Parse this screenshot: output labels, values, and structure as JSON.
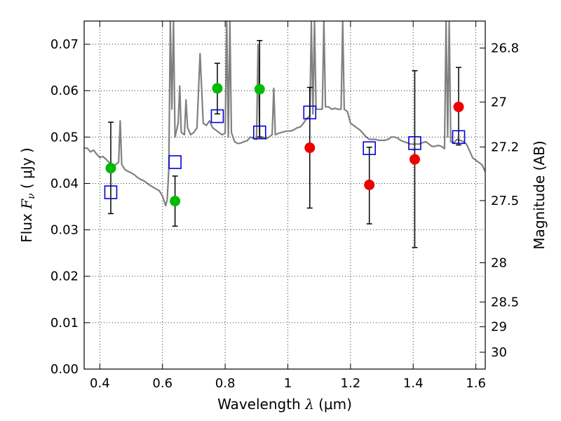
{
  "chart_data": {
    "type": "scatter",
    "title": "",
    "xlabel": {
      "text": "Wavelength",
      "symbol": "λ",
      "unit": "(μm)"
    },
    "ylabel": {
      "text": "Flux",
      "symbol": "F",
      "subscript": "ν",
      "unit": "( μJy )"
    },
    "y2label": "Magnitude (AB)",
    "xlim": [
      0.35,
      1.63
    ],
    "ylim": [
      0.0,
      0.075
    ],
    "grid": true,
    "x_ticks": [
      {
        "value": 0.4,
        "label": "0.4"
      },
      {
        "value": 0.6,
        "label": "0.6"
      },
      {
        "value": 0.8,
        "label": "0.8"
      },
      {
        "value": 1.0,
        "label": "1"
      },
      {
        "value": 1.2,
        "label": "1.2"
      },
      {
        "value": 1.4,
        "label": "1.4"
      },
      {
        "value": 1.6,
        "label": "1.6"
      }
    ],
    "y_ticks": [
      {
        "value": 0.0,
        "label": "0.00"
      },
      {
        "value": 0.01,
        "label": "0.01"
      },
      {
        "value": 0.02,
        "label": "0.02"
      },
      {
        "value": 0.03,
        "label": "0.03"
      },
      {
        "value": 0.04,
        "label": "0.04"
      },
      {
        "value": 0.05,
        "label": "0.05"
      },
      {
        "value": 0.06,
        "label": "0.06"
      },
      {
        "value": 0.07,
        "label": "0.07"
      }
    ],
    "y2_ticks": [
      {
        "value": 26.8,
        "label": "26.8"
      },
      {
        "value": 27.0,
        "label": "27"
      },
      {
        "value": 27.2,
        "label": "27.2"
      },
      {
        "value": 27.5,
        "label": "27.5"
      },
      {
        "value": 28.0,
        "label": "28"
      },
      {
        "value": 28.5,
        "label": "28.5"
      },
      {
        "value": 29.0,
        "label": "29"
      },
      {
        "value": 30.0,
        "label": "30"
      }
    ],
    "model_spectrum": {
      "color": "#808080",
      "points": [
        [
          0.35,
          0.0476
        ],
        [
          0.36,
          0.0476
        ],
        [
          0.37,
          0.0468
        ],
        [
          0.38,
          0.0472
        ],
        [
          0.39,
          0.0463
        ],
        [
          0.4,
          0.0456
        ],
        [
          0.41,
          0.0458
        ],
        [
          0.42,
          0.0452
        ],
        [
          0.43,
          0.0445
        ],
        [
          0.44,
          0.044
        ],
        [
          0.45,
          0.044
        ],
        [
          0.46,
          0.0446
        ],
        [
          0.465,
          0.0535
        ],
        [
          0.47,
          0.0441
        ],
        [
          0.48,
          0.043
        ],
        [
          0.49,
          0.0426
        ],
        [
          0.5,
          0.0423
        ],
        [
          0.51,
          0.0419
        ],
        [
          0.52,
          0.0413
        ],
        [
          0.53,
          0.0409
        ],
        [
          0.54,
          0.0406
        ],
        [
          0.55,
          0.0401
        ],
        [
          0.56,
          0.0396
        ],
        [
          0.57,
          0.0392
        ],
        [
          0.58,
          0.0388
        ],
        [
          0.59,
          0.0384
        ],
        [
          0.6,
          0.0373
        ],
        [
          0.61,
          0.0352
        ],
        [
          0.615,
          0.0365
        ],
        [
          0.62,
          0.043
        ],
        [
          0.625,
          0.075
        ],
        [
          0.63,
          0.056
        ],
        [
          0.635,
          0.075
        ],
        [
          0.64,
          0.05
        ],
        [
          0.65,
          0.053
        ],
        [
          0.655,
          0.061
        ],
        [
          0.66,
          0.051
        ],
        [
          0.67,
          0.0505
        ],
        [
          0.675,
          0.058
        ],
        [
          0.68,
          0.052
        ],
        [
          0.69,
          0.0505
        ],
        [
          0.7,
          0.051
        ],
        [
          0.71,
          0.052
        ],
        [
          0.72,
          0.068
        ],
        [
          0.73,
          0.053
        ],
        [
          0.74,
          0.0525
        ],
        [
          0.75,
          0.0535
        ],
        [
          0.76,
          0.052
        ],
        [
          0.77,
          0.0515
        ],
        [
          0.78,
          0.051
        ],
        [
          0.79,
          0.0505
        ],
        [
          0.8,
          0.0508
        ],
        [
          0.805,
          0.075
        ],
        [
          0.81,
          0.05
        ],
        [
          0.815,
          0.075
        ],
        [
          0.82,
          0.051
        ],
        [
          0.83,
          0.049
        ],
        [
          0.84,
          0.0486
        ],
        [
          0.85,
          0.0487
        ],
        [
          0.86,
          0.049
        ],
        [
          0.87,
          0.0492
        ],
        [
          0.88,
          0.05
        ],
        [
          0.89,
          0.0497
        ],
        [
          0.9,
          0.0495
        ],
        [
          0.905,
          0.07
        ],
        [
          0.91,
          0.0498
        ],
        [
          0.92,
          0.05
        ],
        [
          0.93,
          0.0496
        ],
        [
          0.94,
          0.05
        ],
        [
          0.95,
          0.0505
        ],
        [
          0.955,
          0.0605
        ],
        [
          0.96,
          0.0505
        ],
        [
          0.97,
          0.0508
        ],
        [
          0.98,
          0.051
        ],
        [
          0.99,
          0.0512
        ],
        [
          1.0,
          0.0513
        ],
        [
          1.01,
          0.0513
        ],
        [
          1.02,
          0.0516
        ],
        [
          1.03,
          0.052
        ],
        [
          1.04,
          0.0522
        ],
        [
          1.05,
          0.053
        ],
        [
          1.06,
          0.054
        ],
        [
          1.07,
          0.0545
        ],
        [
          1.075,
          0.075
        ],
        [
          1.08,
          0.055
        ],
        [
          1.085,
          0.075
        ],
        [
          1.09,
          0.056
        ],
        [
          1.1,
          0.056
        ],
        [
          1.11,
          0.056
        ],
        [
          1.115,
          0.075
        ],
        [
          1.12,
          0.0565
        ],
        [
          1.13,
          0.0565
        ],
        [
          1.14,
          0.056
        ],
        [
          1.15,
          0.0562
        ],
        [
          1.16,
          0.056
        ],
        [
          1.17,
          0.056
        ],
        [
          1.175,
          0.075
        ],
        [
          1.18,
          0.056
        ],
        [
          1.19,
          0.0555
        ],
        [
          1.2,
          0.053
        ],
        [
          1.21,
          0.0525
        ],
        [
          1.22,
          0.052
        ],
        [
          1.23,
          0.0515
        ],
        [
          1.24,
          0.0508
        ],
        [
          1.25,
          0.05
        ],
        [
          1.26,
          0.0495
        ],
        [
          1.27,
          0.0495
        ],
        [
          1.28,
          0.0495
        ],
        [
          1.29,
          0.0493
        ],
        [
          1.3,
          0.0493
        ],
        [
          1.31,
          0.0493
        ],
        [
          1.32,
          0.0495
        ],
        [
          1.33,
          0.05
        ],
        [
          1.34,
          0.05
        ],
        [
          1.35,
          0.0498
        ],
        [
          1.36,
          0.0493
        ],
        [
          1.37,
          0.049
        ],
        [
          1.38,
          0.0488
        ],
        [
          1.39,
          0.0485
        ],
        [
          1.4,
          0.0485
        ],
        [
          1.41,
          0.0485
        ],
        [
          1.42,
          0.0485
        ],
        [
          1.43,
          0.0488
        ],
        [
          1.44,
          0.049
        ],
        [
          1.45,
          0.0485
        ],
        [
          1.46,
          0.048
        ],
        [
          1.47,
          0.048
        ],
        [
          1.48,
          0.0482
        ],
        [
          1.49,
          0.048
        ],
        [
          1.5,
          0.0475
        ],
        [
          1.505,
          0.075
        ],
        [
          1.51,
          0.05
        ],
        [
          1.515,
          0.075
        ],
        [
          1.52,
          0.049
        ],
        [
          1.53,
          0.0488
        ],
        [
          1.54,
          0.0495
        ],
        [
          1.55,
          0.0493
        ],
        [
          1.56,
          0.049
        ],
        [
          1.57,
          0.0485
        ],
        [
          1.58,
          0.047
        ],
        [
          1.59,
          0.0455
        ],
        [
          1.6,
          0.045
        ],
        [
          1.61,
          0.0445
        ],
        [
          1.62,
          0.044
        ],
        [
          1.63,
          0.0425
        ]
      ]
    },
    "series": [
      {
        "marker": "circle",
        "color": "#00bb00",
        "points": [
          {
            "x": 0.435,
            "y": 0.0433,
            "yerr": [
              0.0335,
              0.0532
            ]
          },
          {
            "x": 0.64,
            "y": 0.0362,
            "yerr": [
              0.0308,
              0.0416
            ]
          },
          {
            "x": 0.775,
            "y": 0.0605,
            "yerr": [
              0.055,
              0.0659
            ]
          },
          {
            "x": 0.91,
            "y": 0.0603,
            "yerr": [
              0.05,
              0.0708
            ]
          }
        ]
      },
      {
        "marker": "circle",
        "color": "#ee0000",
        "points": [
          {
            "x": 1.07,
            "y": 0.0477,
            "yerr": [
              0.0347,
              0.0607
            ]
          },
          {
            "x": 1.26,
            "y": 0.0397,
            "yerr": [
              0.0313,
              0.0478
            ]
          },
          {
            "x": 1.405,
            "y": 0.0452,
            "yerr": [
              0.0262,
              0.0643
            ]
          },
          {
            "x": 1.545,
            "y": 0.0565,
            "yerr": [
              0.0483,
              0.065
            ]
          }
        ]
      },
      {
        "marker": "square-open",
        "color": "#0000dd",
        "points": [
          {
            "x": 0.435,
            "y": 0.0381
          },
          {
            "x": 0.64,
            "y": 0.0446
          },
          {
            "x": 0.775,
            "y": 0.0545
          },
          {
            "x": 0.91,
            "y": 0.051
          },
          {
            "x": 1.07,
            "y": 0.0553
          },
          {
            "x": 1.26,
            "y": 0.0476
          },
          {
            "x": 1.405,
            "y": 0.0487
          },
          {
            "x": 1.545,
            "y": 0.05
          }
        ]
      }
    ]
  }
}
